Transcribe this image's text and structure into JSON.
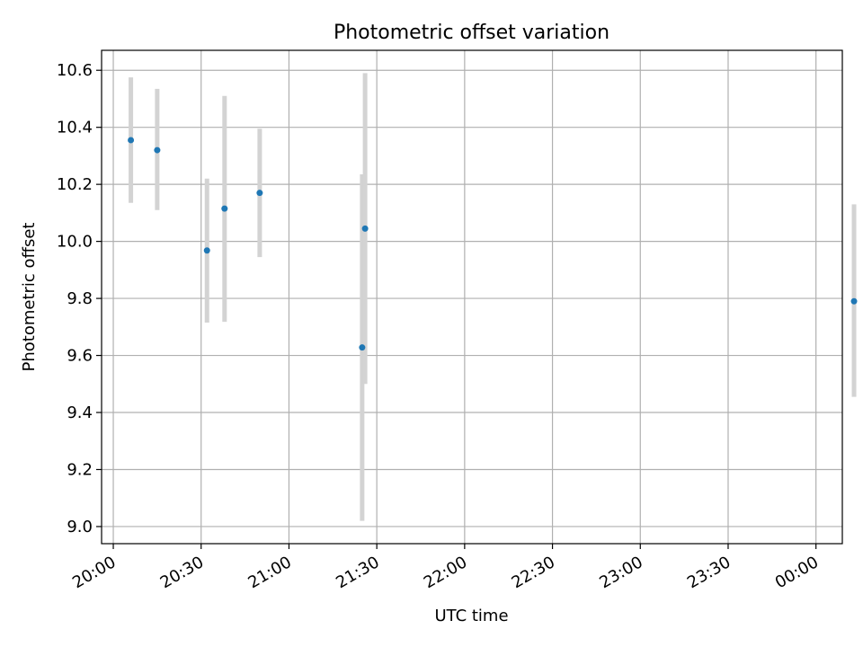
{
  "chart_data": {
    "type": "scatter",
    "title": "Photometric offset variation",
    "xlabel": "UTC time",
    "ylabel": "Photometric offset",
    "x_ticks": [
      "20:00",
      "20:30",
      "21:00",
      "21:30",
      "22:00",
      "22:30",
      "23:00",
      "23:30",
      "00:00"
    ],
    "y_ticks": [
      "9.0",
      "9.2",
      "9.4",
      "9.6",
      "9.8",
      "10.0",
      "10.2",
      "10.4",
      "10.6"
    ],
    "x_range": [
      "19:56",
      "00:09 (next day)"
    ],
    "ylim": [
      8.94,
      10.67
    ],
    "grid": true,
    "errorbar_color": "#d3d3d3",
    "marker_color": "#1f77b4",
    "points": [
      {
        "x": "20:06",
        "y": 10.355,
        "yerr_low": 10.135,
        "yerr_high": 10.575
      },
      {
        "x": "20:15",
        "y": 10.32,
        "yerr_low": 10.11,
        "yerr_high": 10.535
      },
      {
        "x": "20:32",
        "y": 9.968,
        "yerr_low": 9.715,
        "yerr_high": 10.22
      },
      {
        "x": "20:38",
        "y": 10.115,
        "yerr_low": 9.718,
        "yerr_high": 10.51
      },
      {
        "x": "20:50",
        "y": 10.17,
        "yerr_low": 9.945,
        "yerr_high": 10.395
      },
      {
        "x": "21:25",
        "y": 9.628,
        "yerr_low": 9.02,
        "yerr_high": 10.235
      },
      {
        "x": "21:26",
        "y": 10.045,
        "yerr_low": 9.5,
        "yerr_high": 10.59
      },
      {
        "x": "00:13",
        "y": 9.79,
        "yerr_low": 9.455,
        "yerr_high": 10.13
      }
    ]
  }
}
